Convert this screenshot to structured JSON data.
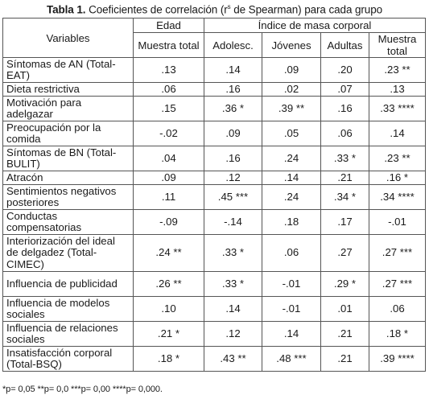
{
  "caption": {
    "label": "Tabla 1.",
    "text": "Coeficientes de correlación (r",
    "sup": "s",
    "text2": " de Spearman) para cada grupo"
  },
  "header": {
    "variables": "Variables",
    "edad": "Edad",
    "imc": "Índice de masa corporal",
    "edad_total": "Muestra total",
    "adolesc": "Adolesc.",
    "jovenes": "Jóvenes",
    "adultas": "Adultas",
    "imc_total": "Muestra total"
  },
  "rows": [
    {
      "label": "Síntomas de AN (Total-EAT)",
      "size": "r1",
      "values": [
        ".13",
        ".14",
        ".09",
        ".20",
        ".23 **"
      ]
    },
    {
      "label": "Dieta restrictiva",
      "size": "r2",
      "values": [
        ".06",
        ".16",
        ".02",
        ".07",
        ".13"
      ]
    },
    {
      "label": "Motivación para adelgazar",
      "size": "r1",
      "values": [
        ".15",
        ".36 *",
        ".39 **",
        ".16",
        ".33 ****"
      ]
    },
    {
      "label": "Preocupación por la comida",
      "size": "r1",
      "values": [
        "-.02",
        ".09",
        ".05",
        ".06",
        ".14"
      ]
    },
    {
      "label": "Síntomas de BN (Total-BULIT)",
      "size": "r1",
      "values": [
        ".04",
        ".16",
        ".24",
        ".33 *",
        ".23 **"
      ]
    },
    {
      "label": "Atracón",
      "size": "r2",
      "values": [
        ".09",
        ".12",
        ".14",
        ".21",
        ".16 *"
      ]
    },
    {
      "label": "Sentimientos negativos posteriores",
      "size": "r1",
      "values": [
        ".11",
        ".45 ***",
        ".24",
        ".34 *",
        ".34 ****"
      ]
    },
    {
      "label": "Conductas compensatorias",
      "size": "r1",
      "values": [
        "-.09",
        "-.14",
        ".18",
        ".17",
        "-.01"
      ]
    },
    {
      "label": "Interiorización del ideal de delgadez (Total-CIMEC)",
      "size": "r3",
      "values": [
        ".24 **",
        ".33 *",
        ".06",
        ".27",
        ".27 ***"
      ]
    },
    {
      "label": "Influencia de publicidad",
      "size": "r1",
      "values": [
        ".26 **",
        ".33 *",
        "-.01",
        ".29 *",
        ".27 ***"
      ]
    },
    {
      "label": "Influencia de modelos sociales",
      "size": "r1",
      "values": [
        ".10",
        ".14",
        "-.01",
        ".01",
        ".06"
      ]
    },
    {
      "label": "Influencia de relaciones sociales",
      "size": "r1",
      "values": [
        ".21 *",
        ".12",
        ".14",
        ".21",
        ".18 *"
      ]
    },
    {
      "label": "Insatisfacción corporal (Total-BSQ)",
      "size": "r1",
      "values": [
        ".18 *",
        ".43 **",
        ".48 ***",
        ".21",
        ".39 ****"
      ]
    }
  ],
  "footnote": "*p= 0,05 **p= 0,0 ***p= 0,00 ****p= 0,000."
}
